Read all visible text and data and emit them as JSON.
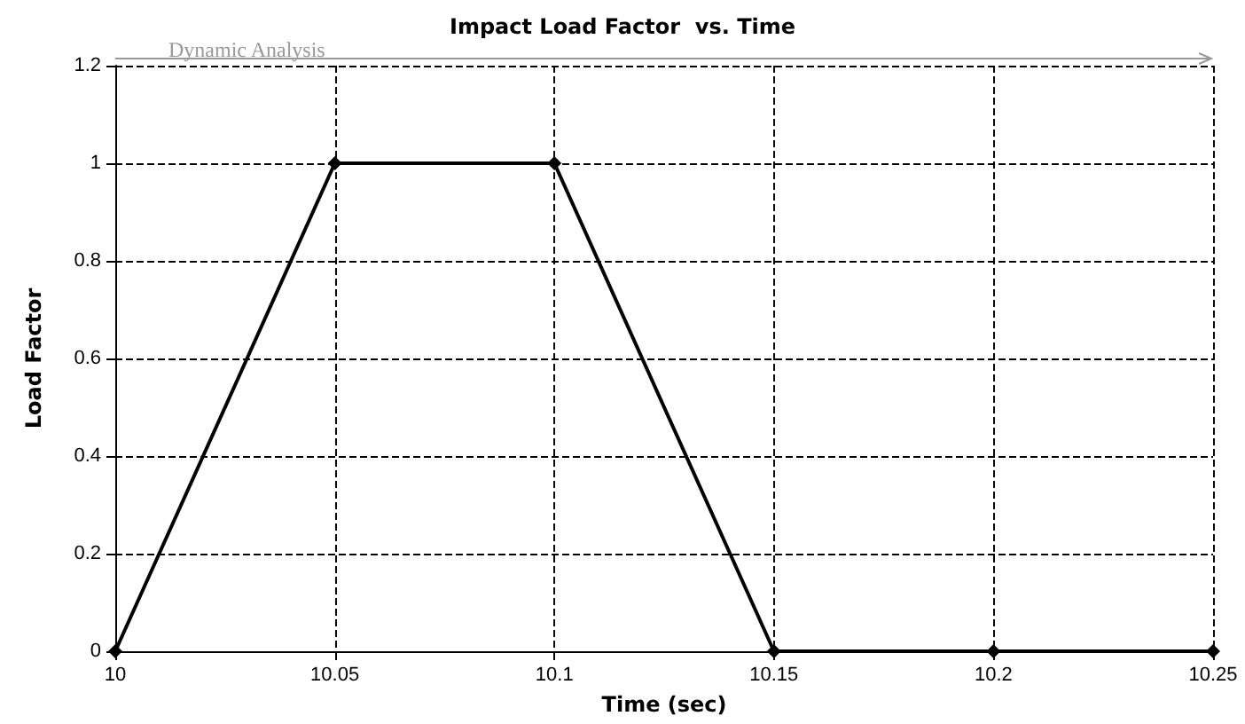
{
  "chart_data": {
    "type": "line",
    "title": "Impact Load Factor  vs. Time",
    "xlabel": "Time (sec)",
    "ylabel": "Load Factor",
    "annotations": [
      "Dynamic Analysis"
    ],
    "x": [
      10,
      10.05,
      10.1,
      10.15,
      10.2,
      10.25
    ],
    "series": [
      {
        "color": "#000000",
        "values": [
          0,
          1,
          1,
          0,
          0,
          0
        ]
      }
    ],
    "xlim": [
      10,
      10.25
    ],
    "xticks": [
      10,
      10.05,
      10.1,
      10.15,
      10.2,
      10.25
    ],
    "ylim": [
      0,
      1.2
    ],
    "yticks": [
      0,
      0.2,
      0.4,
      0.6,
      0.8,
      1,
      1.2
    ],
    "grid": true,
    "marker": "diamond",
    "line_style": "solid"
  }
}
